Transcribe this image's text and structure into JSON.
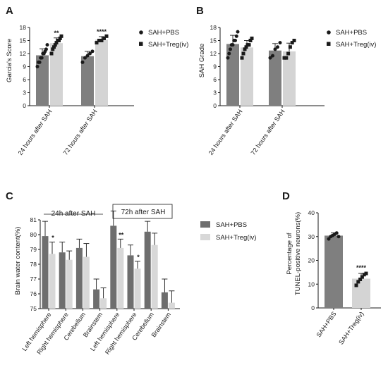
{
  "chart_data": [
    {
      "panel": "A",
      "type": "bar",
      "ylabel": "Garcia's Score",
      "ylim": [
        0,
        18
      ],
      "yticks": [
        0,
        3,
        6,
        9,
        12,
        15,
        18
      ],
      "categories": [
        "24 hours  after SAH",
        "72 hours  after SAH"
      ],
      "series": [
        {
          "name": "SAH+PBS",
          "color": "#7f7f7f",
          "marker": "circle",
          "values": [
            11.6,
            11.4
          ],
          "errors": [
            1.5,
            1.1
          ],
          "points": [
            [
              9.0,
              10.0,
              10.0,
              11.0,
              11.0,
              12.0,
              12.0,
              12.5,
              13.0,
              14.0
            ],
            [
              10.0,
              11.0,
              11.5,
              12.0,
              12.5
            ]
          ]
        },
        {
          "name": "SAH+Treg(iv)",
          "color": "#d4d4d4",
          "marker": "square",
          "values": [
            14.4,
            15.2
          ],
          "errors": [
            1.2,
            0.7
          ],
          "points": [
            [
              12.0,
              13.0,
              13.5,
              14.0,
              14.5,
              15.0,
              15.0,
              15.5,
              16.0
            ],
            [
              14.5,
              15.0,
              15.0,
              15.5,
              16.0
            ]
          ]
        }
      ],
      "significance": [
        "**",
        "****"
      ],
      "legend": "right"
    },
    {
      "panel": "B",
      "type": "bar",
      "ylabel": "SAH Grade",
      "ylim": [
        0,
        18
      ],
      "yticks": [
        0,
        3,
        6,
        9,
        12,
        15,
        18
      ],
      "categories": [
        "24 hours  after SAH",
        "72 hours  after SAH"
      ],
      "series": [
        {
          "name": "SAH+PBS",
          "color": "#7f7f7f",
          "marker": "circle",
          "values": [
            14.2,
            12.7
          ],
          "errors": [
            2.0,
            1.6
          ],
          "points": [
            [
              11.0,
              12.0,
              13.0,
              14.0,
              14.0,
              15.0,
              15.0,
              16.0,
              17.0
            ],
            [
              11.0,
              11.5,
              13.0,
              13.5,
              14.5
            ]
          ]
        },
        {
          "name": "SAH+Treg(iv)",
          "color": "#d4d4d4",
          "marker": "square",
          "values": [
            13.4,
            12.5
          ],
          "errors": [
            1.6,
            1.9
          ],
          "points": [
            [
              11.0,
              12.0,
              13.0,
              13.5,
              14.0,
              14.0,
              15.0,
              15.5
            ],
            [
              11.0,
              11.0,
              12.0,
              13.5,
              14.5,
              15.0
            ]
          ]
        }
      ],
      "significance": [
        "",
        ""
      ],
      "legend": "right"
    },
    {
      "panel": "C",
      "type": "bar",
      "ylabel": "Brain water content(%)",
      "ylim": [
        75,
        81
      ],
      "yticks": [
        75,
        76,
        77,
        78,
        79,
        80,
        81
      ],
      "periods": [
        "24h after SAH",
        "72h after SAH"
      ],
      "categories": [
        "Left hemisphere",
        "Right hemisphere",
        "Cerebellum",
        "Brainstem",
        "Left hemisphere",
        "Right hemisphere",
        "Cerebellum",
        "Brainstem"
      ],
      "series": [
        {
          "name": "SAH+PBS",
          "color": "#6e6e6e",
          "values": [
            79.9,
            78.8,
            79.1,
            76.3,
            80.6,
            78.6,
            80.2,
            76.1
          ],
          "errors": [
            1.0,
            0.7,
            0.6,
            0.7,
            1.0,
            0.7,
            0.7,
            0.9
          ]
        },
        {
          "name": "SAH+Treg(iv)",
          "color": "#d8d8d8",
          "values": [
            78.7,
            78.3,
            78.5,
            75.7,
            79.1,
            77.7,
            79.3,
            75.4
          ],
          "errors": [
            0.8,
            0.6,
            0.9,
            0.7,
            0.6,
            0.5,
            0.8,
            0.8
          ]
        }
      ],
      "significance": [
        "*",
        "",
        "",
        "",
        "**",
        "*",
        "",
        ""
      ],
      "legend": "right"
    },
    {
      "panel": "D",
      "type": "bar",
      "ylabel": "Percentage of\nTUNEL-positive neurons(%)",
      "ylim": [
        0,
        40
      ],
      "yticks": [
        0,
        10,
        20,
        30,
        40
      ],
      "categories": [
        "SAH+PBS",
        "SAH+Treg(iv)"
      ],
      "values": [
        30.4,
        12.3
      ],
      "errors": [
        1.2,
        2.2
      ],
      "colors": [
        "#7f7f7f",
        "#d4d4d4"
      ],
      "markers": [
        "circle",
        "square"
      ],
      "points": [
        [
          29.0,
          30.0,
          30.5,
          31.0,
          31.5,
          30.0
        ],
        [
          9.5,
          11.0,
          12.0,
          13.0,
          14.0,
          14.5
        ]
      ],
      "significance": [
        "",
        "****"
      ]
    }
  ]
}
